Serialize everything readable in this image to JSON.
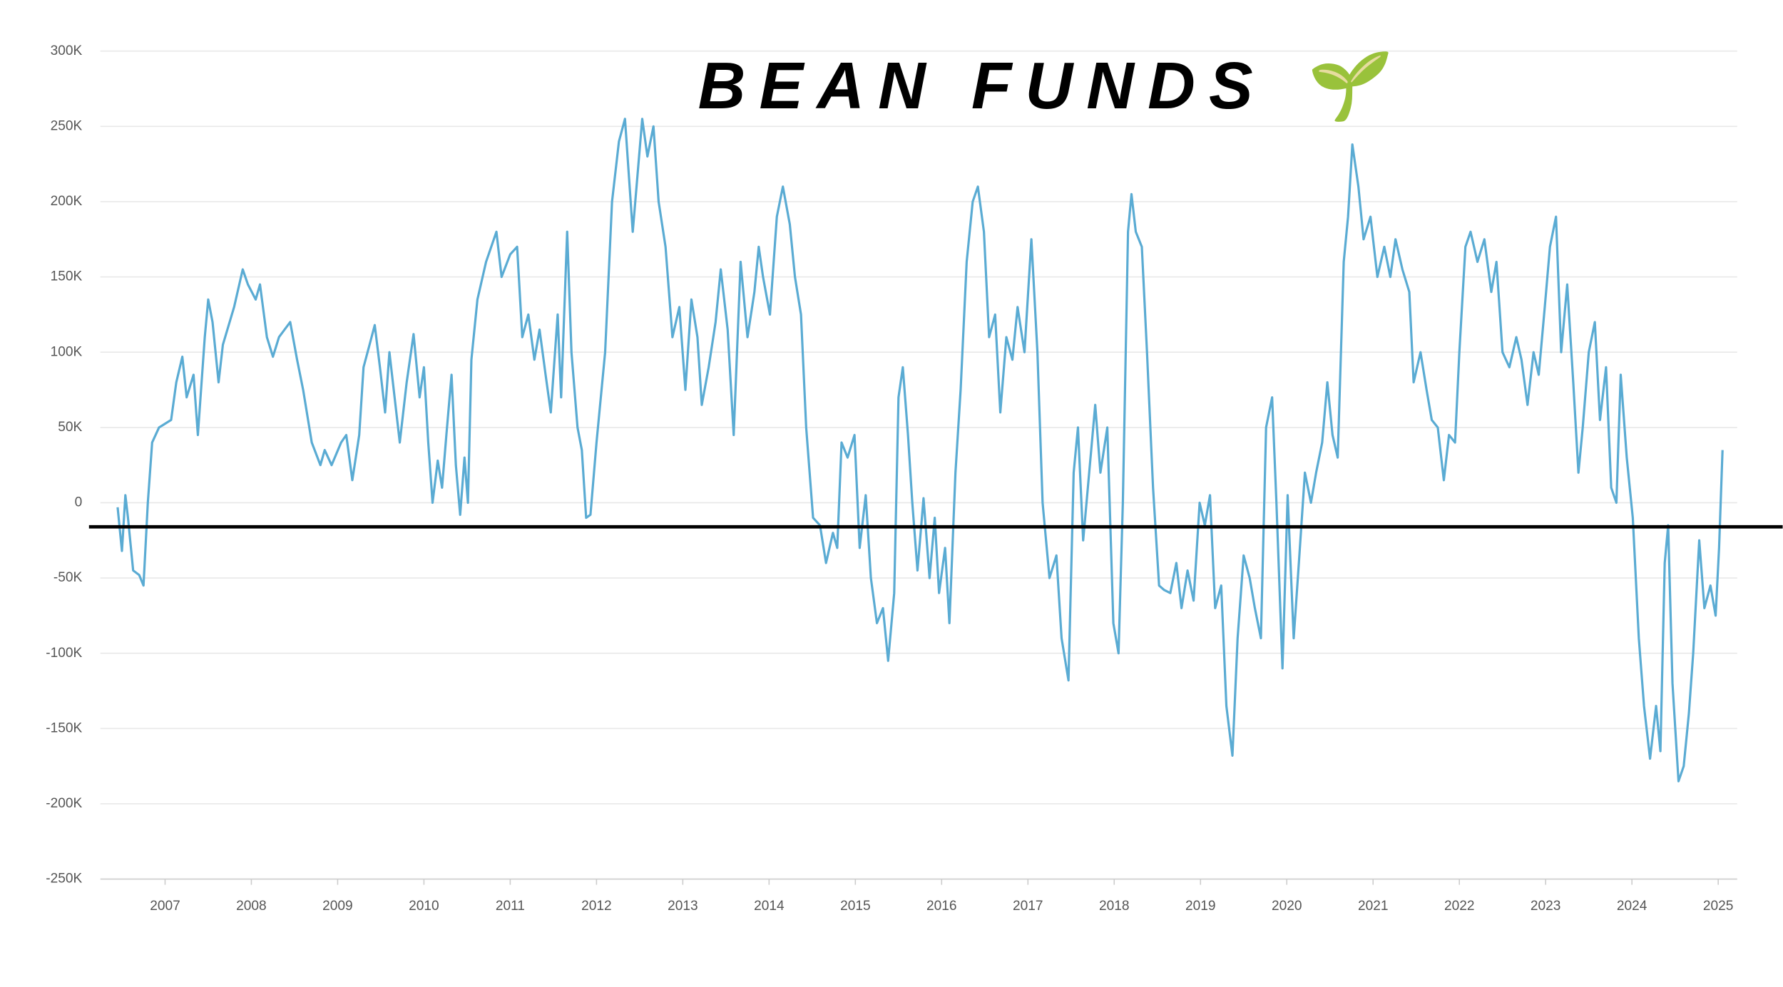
{
  "chart_data": {
    "type": "line",
    "title": "BEAN FUNDS 🌱",
    "color": "#5aabd3",
    "grid": true,
    "hline": -16000,
    "hline_color": "#000000",
    "xlim": [
      2006.25,
      2025.22
    ],
    "xticks": [
      2007,
      2008,
      2009,
      2010,
      2011,
      2012,
      2013,
      2014,
      2015,
      2016,
      2017,
      2018,
      2019,
      2020,
      2021,
      2022,
      2023,
      2024,
      2025
    ],
    "ylim": [
      -250000,
      300000
    ],
    "yticks": [
      {
        "value": -250000,
        "label": "-250K"
      },
      {
        "value": -200000,
        "label": "-200K"
      },
      {
        "value": -150000,
        "label": "-150K"
      },
      {
        "value": -100000,
        "label": "-100K"
      },
      {
        "value": -50000,
        "label": "-50K"
      },
      0,
      {
        "value": 50000,
        "label": "50K"
      },
      {
        "value": 100000,
        "label": "100K"
      },
      {
        "value": 150000,
        "label": "150K"
      },
      {
        "value": 200000,
        "label": "200K"
      },
      {
        "value": 250000,
        "label": "250K"
      },
      {
        "value": 300000,
        "label": "300K"
      }
    ],
    "x": [
      2006.45,
      2006.5,
      2006.54,
      2006.57,
      2006.63,
      2006.7,
      2006.75,
      2006.8,
      2006.85,
      2006.93,
      2007.07,
      2007.13,
      2007.2,
      2007.25,
      2007.33,
      2007.38,
      2007.46,
      2007.5,
      2007.55,
      2007.62,
      2007.67,
      2007.8,
      2007.9,
      2007.96,
      2008.05,
      2008.1,
      2008.18,
      2008.25,
      2008.32,
      2008.45,
      2008.53,
      2008.6,
      2008.7,
      2008.8,
      2008.85,
      2008.93,
      2009.04,
      2009.1,
      2009.17,
      2009.25,
      2009.3,
      2009.37,
      2009.43,
      2009.49,
      2009.55,
      2009.6,
      2009.66,
      2009.72,
      2009.8,
      2009.88,
      2009.95,
      2010.0,
      2010.05,
      2010.1,
      2010.16,
      2010.21,
      2010.26,
      2010.32,
      2010.37,
      2010.42,
      2010.47,
      2010.51,
      2010.55,
      2010.62,
      2010.72,
      2010.84,
      2010.9,
      2011.0,
      2011.08,
      2011.14,
      2011.21,
      2011.28,
      2011.34,
      2011.41,
      2011.47,
      2011.55,
      2011.59,
      2011.66,
      2011.71,
      2011.78,
      2011.83,
      2011.88,
      2011.93,
      2012.0,
      2012.1,
      2012.18,
      2012.26,
      2012.33,
      2012.42,
      2012.53,
      2012.59,
      2012.66,
      2012.72,
      2012.8,
      2012.88,
      2012.96,
      2013.03,
      2013.1,
      2013.17,
      2013.22,
      2013.3,
      2013.38,
      2013.44,
      2013.52,
      2013.59,
      2013.67,
      2013.75,
      2013.83,
      2013.88,
      2013.93,
      2014.01,
      2014.09,
      2014.16,
      2014.24,
      2014.3,
      2014.37,
      2014.43,
      2014.51,
      2014.59,
      2014.66,
      2014.74,
      2014.79,
      2014.84,
      2014.91,
      2014.99,
      2015.05,
      2015.12,
      2015.18,
      2015.25,
      2015.32,
      2015.38,
      2015.45,
      2015.5,
      2015.55,
      2015.61,
      2015.66,
      2015.72,
      2015.79,
      2015.86,
      2015.92,
      2015.97,
      2016.04,
      2016.09,
      2016.16,
      2016.22,
      2016.29,
      2016.36,
      2016.42,
      2016.49,
      2016.55,
      2016.62,
      2016.68,
      2016.75,
      2016.82,
      2016.88,
      2016.96,
      2017.04,
      2017.11,
      2017.17,
      2017.25,
      2017.33,
      2017.39,
      2017.47,
      2017.53,
      2017.58,
      2017.64,
      2017.71,
      2017.78,
      2017.84,
      2017.92,
      2017.99,
      2018.05,
      2018.1,
      2018.16,
      2018.2,
      2018.25,
      2018.32,
      2018.38,
      2018.45,
      2018.52,
      2018.58,
      2018.65,
      2018.72,
      2018.78,
      2018.85,
      2018.92,
      2018.99,
      2019.05,
      2019.11,
      2019.17,
      2019.24,
      2019.3,
      2019.37,
      2019.43,
      2019.5,
      2019.57,
      2019.63,
      2019.7,
      2019.76,
      2019.83,
      2019.88,
      2019.95,
      2020.01,
      2020.08,
      2020.14,
      2020.21,
      2020.28,
      2020.34,
      2020.41,
      2020.47,
      2020.53,
      2020.59,
      2020.66,
      2020.71,
      2020.76,
      2020.83,
      2020.89,
      2020.97,
      2021.05,
      2021.13,
      2021.2,
      2021.26,
      2021.34,
      2021.42,
      2021.47,
      2021.55,
      2021.62,
      2021.68,
      2021.75,
      2021.82,
      2021.88,
      2021.95,
      2022.0,
      2022.07,
      2022.13,
      2022.21,
      2022.29,
      2022.37,
      2022.43,
      2022.5,
      2022.58,
      2022.66,
      2022.72,
      2022.79,
      2022.86,
      2022.92,
      2022.99,
      2023.05,
      2023.12,
      2023.18,
      2023.25,
      2023.32,
      2023.38,
      2023.43,
      2023.5,
      2023.57,
      2023.63,
      2023.7,
      2023.76,
      2023.82,
      2023.87,
      2023.94,
      2024.01,
      2024.08,
      2024.14,
      2024.21,
      2024.28,
      2024.33,
      2024.38,
      2024.42,
      2024.47,
      2024.54,
      2024.6,
      2024.66,
      2024.71,
      2024.78,
      2024.84,
      2024.91,
      2024.97,
      2025.01,
      2025.05
    ],
    "values": [
      -3000,
      -32000,
      5000,
      -10000,
      -45000,
      -48000,
      -55000,
      0,
      40000,
      50000,
      55000,
      80000,
      97000,
      70000,
      85000,
      45000,
      110000,
      135000,
      120000,
      80000,
      105000,
      130000,
      155000,
      145000,
      135000,
      145000,
      110000,
      97000,
      110000,
      120000,
      95000,
      75000,
      40000,
      25000,
      35000,
      25000,
      40000,
      45000,
      15000,
      45000,
      90000,
      105000,
      118000,
      90000,
      60000,
      100000,
      70000,
      40000,
      80000,
      112000,
      70000,
      90000,
      40000,
      0,
      28000,
      10000,
      45000,
      85000,
      25000,
      -8000,
      30000,
      0,
      95000,
      135000,
      160000,
      180000,
      150000,
      165000,
      170000,
      110000,
      125000,
      95000,
      115000,
      85000,
      60000,
      125000,
      70000,
      180000,
      100000,
      50000,
      35000,
      -10000,
      -8000,
      40000,
      100000,
      200000,
      240000,
      255000,
      180000,
      255000,
      230000,
      250000,
      200000,
      170000,
      110000,
      130000,
      75000,
      135000,
      110000,
      65000,
      90000,
      120000,
      155000,
      115000,
      45000,
      160000,
      110000,
      140000,
      170000,
      150000,
      125000,
      190000,
      210000,
      185000,
      150000,
      125000,
      50000,
      -10000,
      -15000,
      -40000,
      -20000,
      -30000,
      40000,
      30000,
      45000,
      -30000,
      5000,
      -50000,
      -80000,
      -70000,
      -105000,
      -60000,
      70000,
      90000,
      45000,
      0,
      -45000,
      3000,
      -50000,
      -10000,
      -60000,
      -30000,
      -80000,
      20000,
      75000,
      160000,
      200000,
      210000,
      180000,
      110000,
      125000,
      60000,
      110000,
      95000,
      130000,
      100000,
      175000,
      100000,
      0,
      -50000,
      -35000,
      -90000,
      -118000,
      20000,
      50000,
      -25000,
      20000,
      65000,
      20000,
      50000,
      -80000,
      -100000,
      0,
      180000,
      205000,
      180000,
      170000,
      100000,
      10000,
      -55000,
      -58000,
      -60000,
      -40000,
      -70000,
      -45000,
      -65000,
      0,
      -15000,
      5000,
      -70000,
      -55000,
      -135000,
      -168000,
      -90000,
      -35000,
      -50000,
      -70000,
      -90000,
      50000,
      70000,
      0,
      -110000,
      5000,
      -90000,
      -40000,
      20000,
      0,
      20000,
      40000,
      80000,
      45000,
      30000,
      160000,
      190000,
      238000,
      210000,
      175000,
      190000,
      150000,
      170000,
      150000,
      175000,
      155000,
      140000,
      80000,
      100000,
      75000,
      55000,
      50000,
      15000,
      45000,
      40000,
      100000,
      170000,
      180000,
      160000,
      175000,
      140000,
      160000,
      100000,
      90000,
      110000,
      95000,
      65000,
      100000,
      85000,
      130000,
      170000,
      190000,
      100000,
      145000,
      80000,
      20000,
      50000,
      100000,
      120000,
      55000,
      90000,
      10000,
      0,
      85000,
      30000,
      -10000,
      -90000,
      -135000,
      -170000,
      -135000,
      -165000,
      -40000,
      -15000,
      -120000,
      -185000,
      -175000,
      -140000,
      -100000,
      -25000,
      -70000,
      -55000,
      -75000,
      -30000,
      35000
    ]
  }
}
